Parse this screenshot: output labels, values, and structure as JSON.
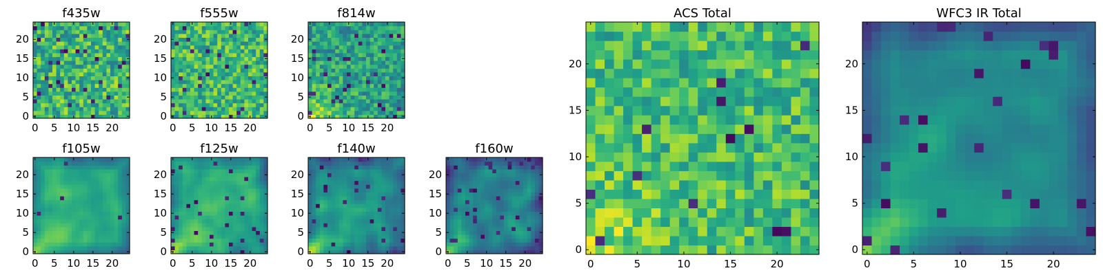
{
  "chart_data": {
    "type": "heatmap",
    "colormap": "viridis",
    "panels": [
      {
        "id": "f435w",
        "title": "f435w",
        "size": 25,
        "xticks": [
          0,
          5,
          10,
          15,
          20
        ],
        "yticks": [
          0,
          5,
          10,
          15,
          20
        ],
        "xlim": [
          0,
          24
        ],
        "ylim": [
          0,
          24
        ],
        "seed": 11,
        "texture": "noise",
        "mean": 0.66,
        "noise": 0.24,
        "dark_rate": 0.05,
        "corner_boost": 0.0
      },
      {
        "id": "f555w",
        "title": "f555w",
        "size": 25,
        "xticks": [
          0,
          5,
          10,
          15,
          20
        ],
        "yticks": [
          0,
          5,
          10,
          15,
          20
        ],
        "xlim": [
          0,
          24
        ],
        "ylim": [
          0,
          24
        ],
        "seed": 23,
        "texture": "noise",
        "mean": 0.67,
        "noise": 0.22,
        "dark_rate": 0.04,
        "corner_boost": 0.0
      },
      {
        "id": "f814w",
        "title": "f814w",
        "size": 25,
        "xticks": [
          0,
          5,
          10,
          15,
          20
        ],
        "yticks": [
          0,
          5,
          10,
          15,
          20
        ],
        "xlim": [
          0,
          24
        ],
        "ylim": [
          0,
          24
        ],
        "seed": 37,
        "texture": "noise",
        "mean": 0.56,
        "noise": 0.2,
        "dark_rate": 0.04,
        "corner_boost": 0.45
      },
      {
        "id": "f105w",
        "title": "f105w",
        "size": 25,
        "xticks": [
          0,
          5,
          10,
          15,
          20
        ],
        "yticks": [
          0,
          5,
          10,
          15,
          20
        ],
        "xlim": [
          0,
          24
        ],
        "ylim": [
          0,
          24
        ],
        "seed": 41,
        "texture": "smooth",
        "mean": 0.6,
        "noise": 0.13,
        "dark_rate": 0.01,
        "corner_boost": 0.45
      },
      {
        "id": "f125w",
        "title": "f125w",
        "size": 25,
        "xticks": [
          0,
          5,
          10,
          15,
          20
        ],
        "yticks": [
          0,
          5,
          10,
          15,
          20
        ],
        "xlim": [
          0,
          24
        ],
        "ylim": [
          0,
          24
        ],
        "seed": 53,
        "texture": "smooth",
        "mean": 0.62,
        "noise": 0.17,
        "dark_rate": 0.03,
        "corner_boost": 0.45
      },
      {
        "id": "f140w",
        "title": "f140w",
        "size": 25,
        "xticks": [
          0,
          5,
          10,
          15,
          20
        ],
        "yticks": [
          0,
          5,
          10,
          15,
          20
        ],
        "xlim": [
          0,
          24
        ],
        "ylim": [
          0,
          24
        ],
        "seed": 67,
        "texture": "smooth",
        "mean": 0.5,
        "noise": 0.16,
        "dark_rate": 0.03,
        "corner_boost": 0.55
      },
      {
        "id": "f160w",
        "title": "f160w",
        "size": 25,
        "xticks": [
          0,
          5,
          10,
          15,
          20
        ],
        "yticks": [
          0,
          5,
          10,
          15,
          20
        ],
        "xlim": [
          0,
          24
        ],
        "ylim": [
          0,
          24
        ],
        "seed": 79,
        "texture": "smooth",
        "mean": 0.43,
        "noise": 0.16,
        "dark_rate": 0.05,
        "corner_boost": 0.6
      },
      {
        "id": "acs_total",
        "title": "ACS Total",
        "size": 25,
        "xticks": [
          0,
          5,
          10,
          15,
          20
        ],
        "yticks": [
          0,
          5,
          10,
          15,
          20
        ],
        "xlim": [
          0,
          24
        ],
        "ylim": [
          0,
          24
        ],
        "seed": 97,
        "texture": "noise",
        "mean": 0.68,
        "noise": 0.2,
        "dark_rate": 0.025,
        "corner_boost": 0.25
      },
      {
        "id": "wfc3_ir_total",
        "title": "WFC3 IR Total",
        "size": 25,
        "xticks": [
          0,
          5,
          10,
          15,
          20
        ],
        "yticks": [
          0,
          5,
          10,
          15,
          20
        ],
        "xlim": [
          0,
          24
        ],
        "ylim": [
          0,
          24
        ],
        "seed": 103,
        "texture": "smooth",
        "mean": 0.46,
        "noise": 0.12,
        "dark_rate": 0.04,
        "corner_boost": 0.55
      }
    ]
  }
}
